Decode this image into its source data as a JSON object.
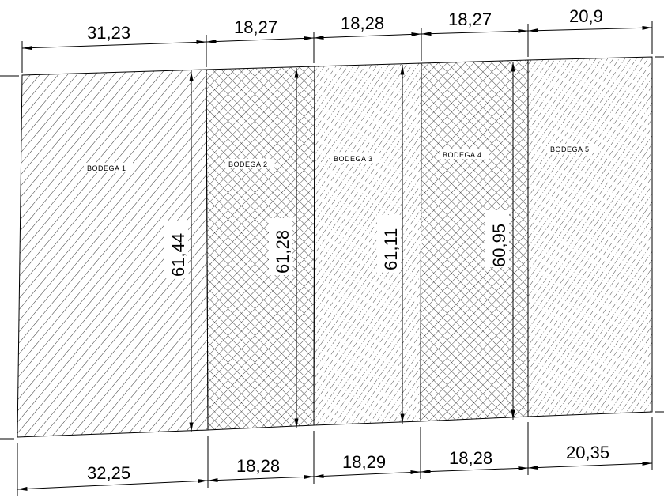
{
  "lots": [
    {
      "label": "BODEGA 1",
      "hatch": "diagonal"
    },
    {
      "label": "BODEGA 2",
      "hatch": "crosshatch"
    },
    {
      "label": "BODEGA 3",
      "hatch": "dashed-diagonal"
    },
    {
      "label": "BODEGA 4",
      "hatch": "crosshatch"
    },
    {
      "label": "BODEGA 5",
      "hatch": "dashed-diagonal"
    }
  ],
  "top_dimensions": [
    "31,23",
    "18,27",
    "18,28",
    "18,27",
    "20,9"
  ],
  "bottom_dimensions": [
    "32,25",
    "18,28",
    "18,29",
    "18,28",
    "20,35"
  ],
  "height_dimensions": [
    "61,44",
    "61,28",
    "61,11",
    "60,95"
  ]
}
